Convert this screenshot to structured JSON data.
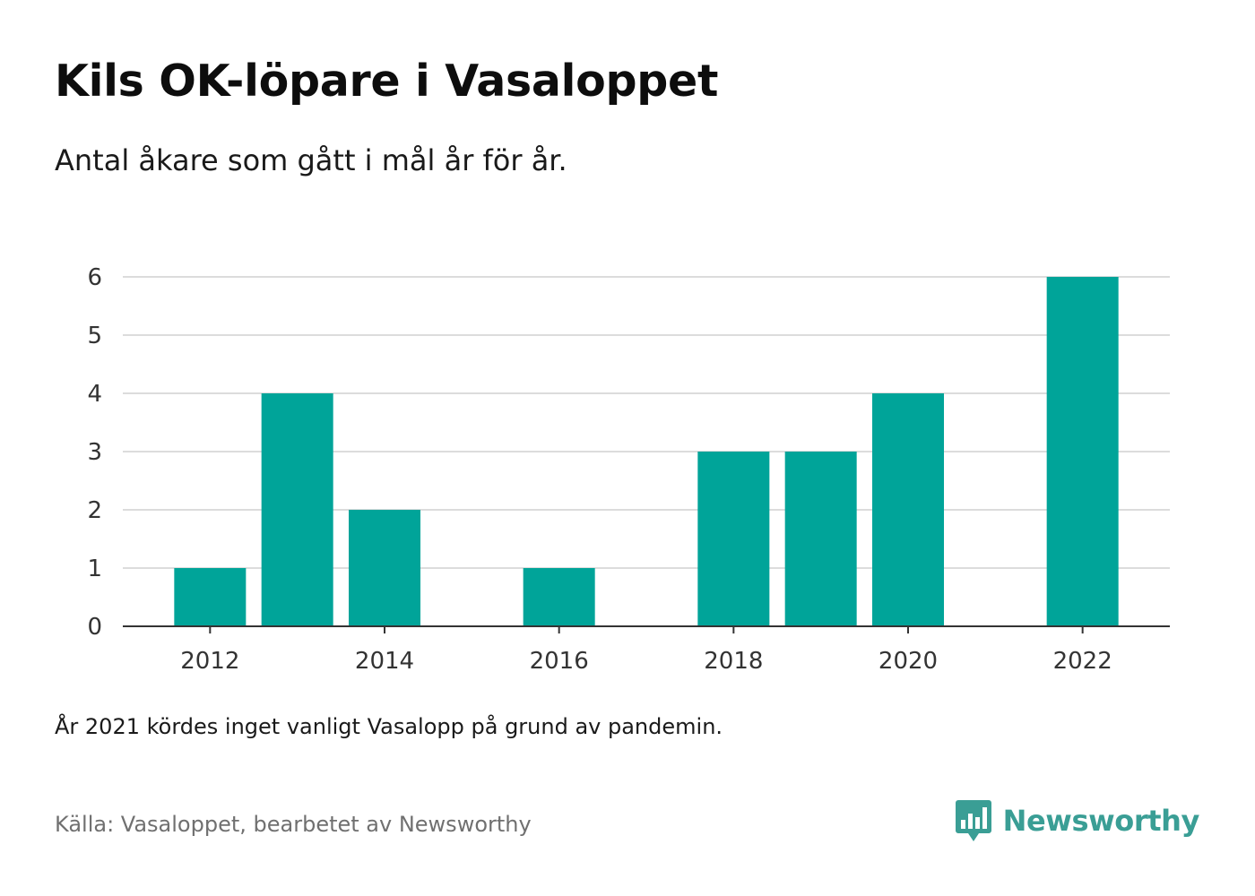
{
  "header": {
    "title": "Kils OK-löpare i Vasaloppet",
    "subtitle": "Antal åkare som gått i mål år för år."
  },
  "chart_data": {
    "type": "bar",
    "x": [
      2012,
      2013,
      2014,
      2016,
      2018,
      2019,
      2020,
      2022
    ],
    "values": [
      1,
      4,
      2,
      1,
      3,
      3,
      4,
      6
    ],
    "xlim": [
      2011,
      2023
    ],
    "ylim": [
      0,
      6
    ],
    "xticks": [
      "2012",
      "2014",
      "2016",
      "2018",
      "2020",
      "2022"
    ],
    "yticks": [
      "0",
      "1",
      "2",
      "3",
      "4",
      "5",
      "6"
    ],
    "grid": "horizontal",
    "bar_color": "#00a499"
  },
  "footer": {
    "note": "År 2021 kördes inget vanligt Vasalopp på grund av pandemin.",
    "source": "Källa: Vasaloppet, bearbetet av Newsworthy",
    "brand": "Newsworthy",
    "brand_color": "#3a9e95"
  }
}
